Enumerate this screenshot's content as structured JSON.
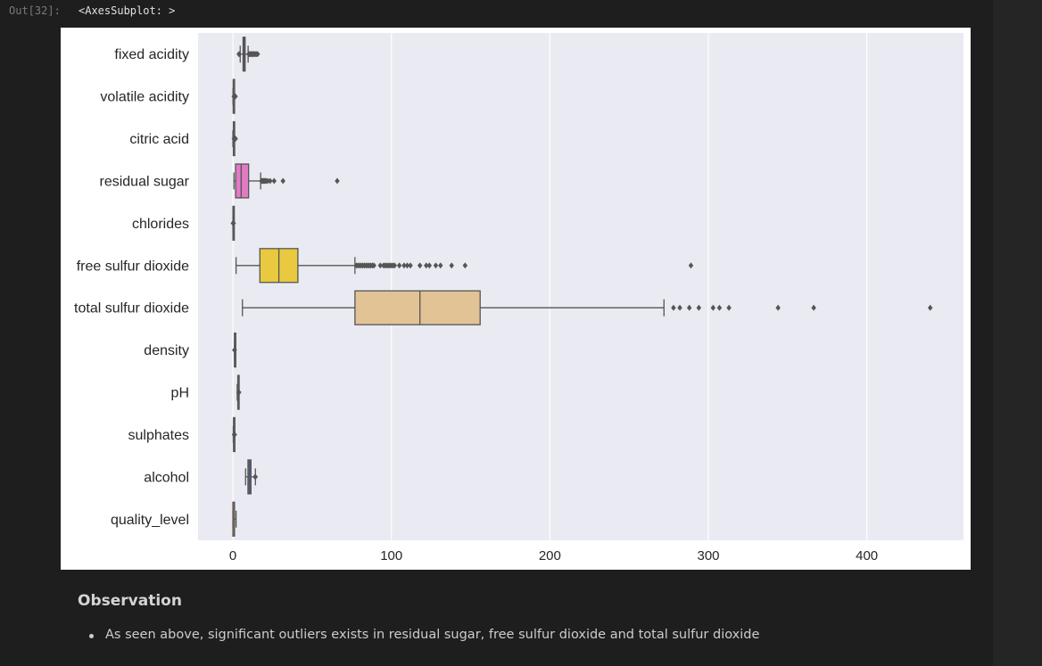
{
  "cell": {
    "prompt": "Out[32]:",
    "output_text": "<AxesSubplot: >"
  },
  "observation": {
    "title": "Observation",
    "bullets": [
      "As seen above, significant outliers exists in residual sugar, free sulfur dioxide and total sulfur dioxide"
    ]
  },
  "chart_data": {
    "type": "boxplot",
    "orientation": "horizontal",
    "xlim": [
      -22,
      461
    ],
    "xticks": [
      0,
      100,
      200,
      300,
      400
    ],
    "xtick_labels": [
      "0",
      "100",
      "200",
      "300",
      "400"
    ],
    "grid": true,
    "background": "#eaeaf2",
    "series": [
      {
        "name": "fixed acidity",
        "color": "#4c72b0",
        "whislo": 4.6,
        "q1": 6.4,
        "median": 7.0,
        "q3": 7.7,
        "whishi": 9.6,
        "fliers": [
          3.8,
          3.9,
          10.0,
          10.5,
          11.0,
          11.5,
          12.0,
          12.5,
          13.0,
          13.5,
          14.2,
          15.0,
          15.6
        ]
      },
      {
        "name": "volatile acidity",
        "color": "#dd8452",
        "whislo": 0.08,
        "q1": 0.21,
        "median": 0.26,
        "q3": 0.32,
        "whishi": 0.49,
        "fliers": [
          0.6,
          0.8,
          1.0,
          1.2,
          1.58
        ]
      },
      {
        "name": "citric acid",
        "color": "#55a868",
        "whislo": 0.0,
        "q1": 0.27,
        "median": 0.32,
        "q3": 0.39,
        "whishi": 0.57,
        "fliers": [
          0.7,
          1.0,
          1.23,
          1.66
        ]
      },
      {
        "name": "residual sugar",
        "color": "#e07bc4",
        "whislo": 0.6,
        "q1": 1.7,
        "median": 5.2,
        "q3": 9.9,
        "whishi": 17.5,
        "fliers": [
          18.0,
          18.5,
          19.0,
          19.5,
          20.0,
          20.5,
          21.0,
          22.0,
          23.5,
          26.0,
          31.6,
          65.8
        ]
      },
      {
        "name": "chlorides",
        "color": "#8172b3",
        "whislo": 0.009,
        "q1": 0.036,
        "median": 0.043,
        "q3": 0.05,
        "whishi": 0.07,
        "fliers": [
          0.1,
          0.2,
          0.35
        ]
      },
      {
        "name": "free sulfur dioxide",
        "color": "#e8c93f",
        "whislo": 2.0,
        "q1": 17.0,
        "median": 29.0,
        "q3": 41.0,
        "whishi": 77.0,
        "fliers": [
          78,
          79,
          80,
          81,
          82,
          83,
          84,
          85,
          86,
          87,
          88,
          89,
          93,
          95,
          96,
          97,
          98,
          99,
          100,
          101,
          102,
          105,
          108,
          110,
          112,
          118,
          122,
          124,
          128,
          131,
          138,
          146.5,
          289
        ]
      },
      {
        "name": "total sulfur dioxide",
        "color": "#e2c396",
        "whislo": 6.0,
        "q1": 77.0,
        "median": 118.0,
        "q3": 156.0,
        "whishi": 272.0,
        "fliers": [
          278,
          282,
          288,
          294,
          303,
          307,
          313,
          344,
          366.5,
          440
        ]
      },
      {
        "name": "density",
        "color": "#8c8c8c",
        "whislo": 0.987,
        "q1": 0.992,
        "median": 0.994,
        "q3": 0.996,
        "whishi": 1.002,
        "fliers": [
          1.01,
          1.039
        ]
      },
      {
        "name": "pH",
        "color": "#dbd95e",
        "whislo": 2.72,
        "q1": 3.09,
        "median": 3.18,
        "q3": 3.28,
        "whishi": 3.57,
        "fliers": [
          3.6,
          3.7,
          3.82
        ]
      },
      {
        "name": "sulphates",
        "color": "#64b5cd",
        "whislo": 0.22,
        "q1": 0.41,
        "median": 0.47,
        "q3": 0.55,
        "whishi": 0.76,
        "fliers": [
          0.8,
          0.9,
          1.08
        ]
      },
      {
        "name": "alcohol",
        "color": "#4c72b0",
        "whislo": 8.0,
        "q1": 9.5,
        "median": 10.4,
        "q3": 11.4,
        "whishi": 14.2,
        "fliers": [
          14.05,
          14.2
        ]
      },
      {
        "name": "quality_level",
        "color": "#dd8452",
        "whislo": 0.0,
        "q1": 0.0,
        "median": 1.0,
        "q3": 1.0,
        "whishi": 2.0,
        "fliers": []
      }
    ]
  }
}
